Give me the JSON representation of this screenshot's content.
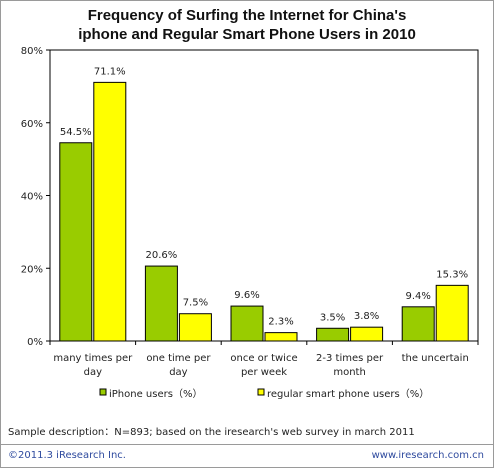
{
  "chart_data": {
    "type": "bar",
    "title_line1": "Frequency of Surfing the Internet for China's",
    "title_line2": "iphone  and Regular Smart  Phone Users in 2010",
    "categories": [
      [
        "many times per",
        "day"
      ],
      [
        "one time per",
        "day"
      ],
      [
        "once or twice",
        "per week"
      ],
      [
        "2-3 times per",
        "month"
      ],
      [
        "the uncertain"
      ]
    ],
    "series": [
      {
        "name": "iPhone users（%）",
        "color": "#99cc00",
        "values": [
          54.5,
          20.6,
          9.6,
          3.5,
          9.4
        ],
        "labels": [
          "54.5%",
          "20.6%",
          "9.6%",
          "3.5%",
          "9.4%"
        ]
      },
      {
        "name": "regular smart phone users（%）",
        "color": "#ffff00",
        "values": [
          71.1,
          7.5,
          2.3,
          3.8,
          15.3
        ],
        "labels": [
          "71.1%",
          "7.5%",
          "2.3%",
          "3.8%",
          "15.3%"
        ]
      }
    ],
    "ylim": [
      0,
      80
    ],
    "yticks": [
      0,
      20,
      40,
      60,
      80
    ],
    "ytick_labels": [
      "0%",
      "20%",
      "40%",
      "60%",
      "80%"
    ],
    "xlabel": "",
    "ylabel": "",
    "grid": false,
    "legend_position": "bottom"
  },
  "sample_description": "Sample description：N=893;  based on  the iresearch's web survey  in march 2011",
  "footer": {
    "copyright": "©2011.3  iResearch Inc.",
    "website": "www.iresearch.com.cn"
  }
}
